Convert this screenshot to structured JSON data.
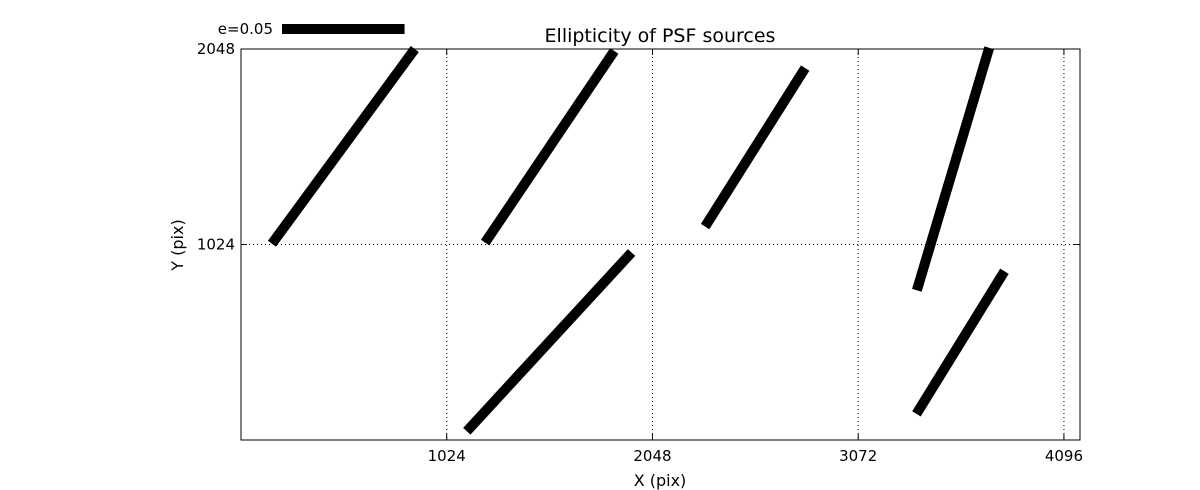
{
  "chart_data": {
    "type": "scatter",
    "title": "Ellipticity of PSF sources",
    "xlabel": "X (pix)",
    "ylabel": "Y (pix)",
    "xlim": [
      0,
      4176
    ],
    "ylim": [
      0,
      2048
    ],
    "xticks": [
      1024,
      2048,
      3072,
      4096
    ],
    "yticks": [
      1024,
      2048
    ],
    "xtick_labels": [
      "1024",
      "2048",
      "3072",
      "4096"
    ],
    "ytick_labels": [
      "1024",
      "2048"
    ],
    "grid": true,
    "marker": "ellipticity-whisker",
    "colors": {
      "whisker": "#000000",
      "grid": "#000000",
      "frame": "#000000"
    },
    "key": {
      "label": "e=0.05",
      "e": 0.05,
      "length_pix": 610,
      "placement": "top-left"
    },
    "whiskers": [
      {
        "x1": 154,
        "y1": 1028,
        "x2": 865,
        "y2": 2048
      },
      {
        "x1": 1215,
        "y1": 1034,
        "x2": 1858,
        "y2": 2038
      },
      {
        "x1": 2310,
        "y1": 1118,
        "x2": 2808,
        "y2": 1948
      },
      {
        "x1": 3364,
        "y1": 784,
        "x2": 3724,
        "y2": 2054
      },
      {
        "x1": 1124,
        "y1": 46,
        "x2": 1944,
        "y2": 982
      },
      {
        "x1": 3362,
        "y1": 137,
        "x2": 3800,
        "y2": 884
      }
    ]
  }
}
